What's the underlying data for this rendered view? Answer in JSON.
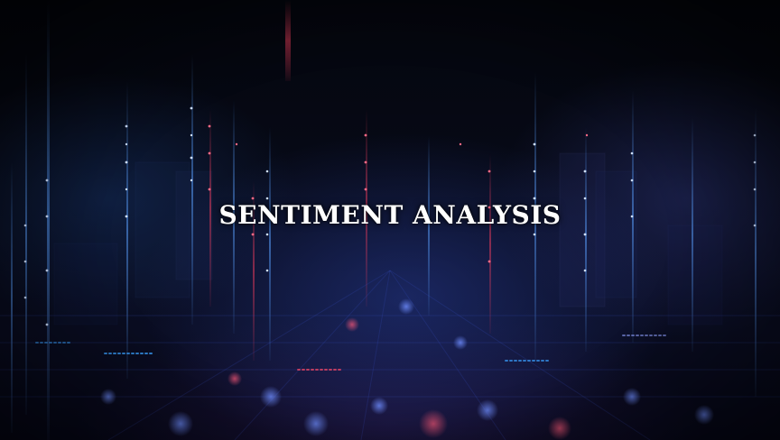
{
  "title": "SENTIMENT ANALYSIS",
  "colors": {
    "background": "#05070f",
    "blue_glow": "#3b6cff",
    "red_glow": "#ff3b5c",
    "text": "#ffffff"
  }
}
